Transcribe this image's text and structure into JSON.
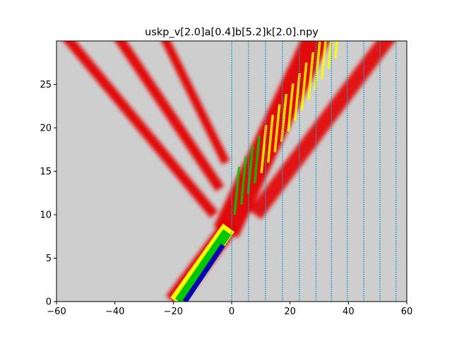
{
  "chart_data": {
    "type": "heatmap",
    "title": "uskp_v[2.0]a[0.4]b[5.2]k[2.0].npy",
    "xlim": [
      -60,
      60
    ],
    "ylim": [
      0,
      30
    ],
    "xticks": [
      -60,
      -40,
      -20,
      0,
      20,
      40,
      60
    ],
    "yticks": [
      0,
      5,
      10,
      15,
      20,
      25
    ],
    "grid": false,
    "background_color": "#cecece",
    "colormap": [
      "#cecece",
      "#e30000",
      "#ffff00",
      "#00c800",
      "#0000b4"
    ],
    "vertical_lines": {
      "color": "#1f9ad6",
      "style": "dotted",
      "x": [
        0,
        5.8,
        11.6,
        17.4,
        23.2,
        28.9,
        34.2,
        39.6,
        45.3,
        50.8,
        56.3
      ]
    }
  }
}
